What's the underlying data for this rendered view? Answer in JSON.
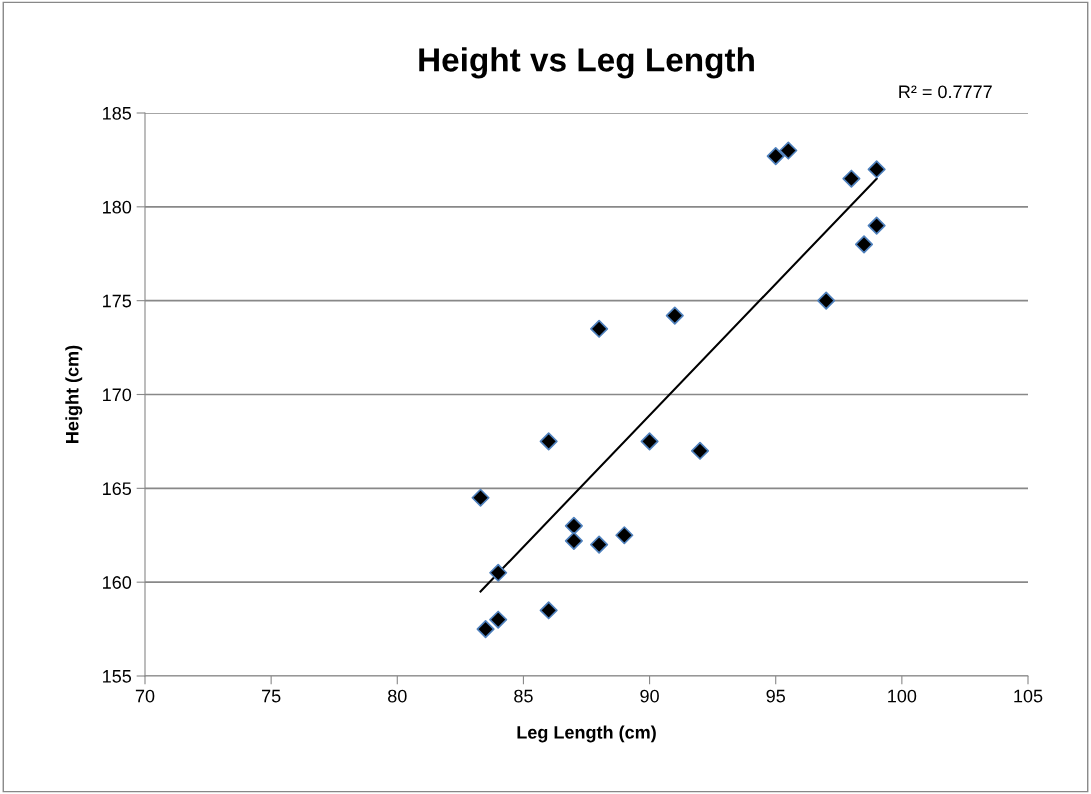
{
  "chart_data": {
    "type": "scatter",
    "title": "Height vs Leg Length",
    "xlabel": "Leg Length (cm)",
    "ylabel": "Height (cm)",
    "xlim": [
      70,
      105
    ],
    "xticks": [
      70,
      75,
      80,
      85,
      90,
      95,
      100,
      105
    ],
    "ylim": [
      155,
      185
    ],
    "yticks": [
      155,
      160,
      165,
      170,
      175,
      180,
      185
    ],
    "grid": "y",
    "annotations": [
      "R² = 0.7777"
    ],
    "series": [
      {
        "marker": "diamond",
        "color": "#000000",
        "x": [
          83.3,
          84,
          83.5,
          84,
          86,
          86,
          87,
          87,
          88,
          89,
          90,
          92,
          88,
          91,
          95,
          95.5,
          98,
          99,
          99,
          98.5,
          97
        ],
        "values": [
          164.5,
          160.5,
          157.5,
          158,
          158.5,
          167.5,
          163,
          162.2,
          162,
          162.5,
          167.5,
          167,
          173.5,
          174.2,
          182.7,
          183,
          181.5,
          182,
          179,
          178,
          175
        ]
      },
      {
        "type": "line",
        "color": "#000000",
        "x": [
          83.3,
          99
        ],
        "values": [
          159.5,
          181.5
        ],
        "line_style": "solid",
        "marker": "none"
      }
    ]
  }
}
